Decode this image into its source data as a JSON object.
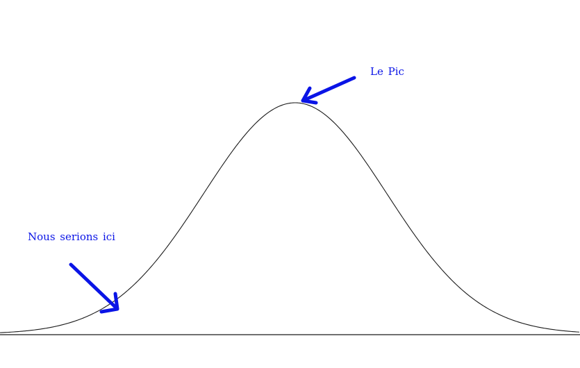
{
  "annotations": {
    "start": {
      "label": "Nous serions ici"
    },
    "peak": {
      "label": "Le Pic"
    }
  },
  "colors": {
    "annotation": "#0a14e6",
    "curve": "#1a1a1a",
    "baseline": "#1a1a1a",
    "background": "#ffffff"
  },
  "curve": {
    "shape": "bell",
    "note": ""
  }
}
